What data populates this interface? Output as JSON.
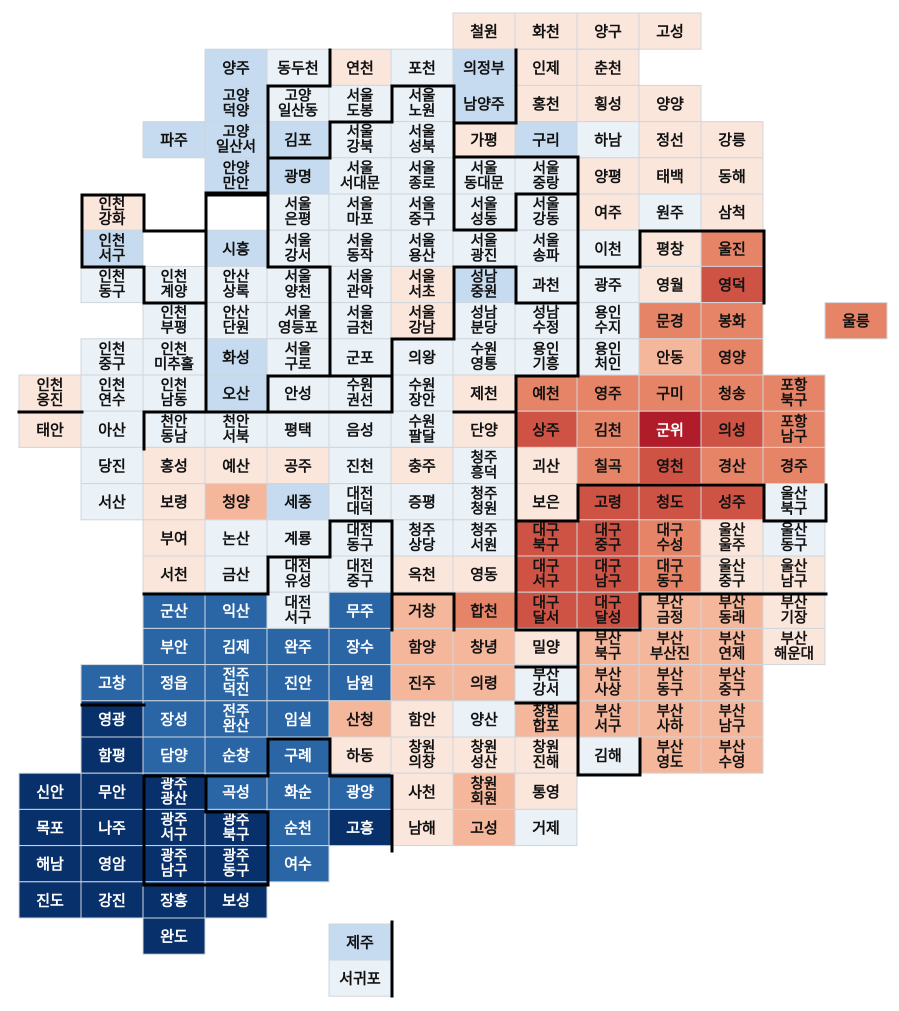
{
  "chart_data": {
    "type": "heatmap",
    "title": "",
    "colors": {
      "b4": "#08306b",
      "b3": "#2a65a6",
      "b2": "#c6dbef",
      "b1": "#eaf2f8",
      "r1": "#fbe6db",
      "r2": "#f5b79b",
      "r3": "#e58466",
      "r4": "#cf5344",
      "r5": "#b01c2a",
      "cell_border": "#cfd6dd",
      "boundary": "#000000"
    },
    "text_colors": {
      "light": "#ffffff",
      "dark": "#111111"
    },
    "rows": [
      [
        [
          7,
          "철원",
          "r1"
        ],
        [
          8,
          "화천",
          "r1"
        ],
        [
          9,
          "양구",
          "r1"
        ],
        [
          10,
          "고성",
          "r1"
        ]
      ],
      [
        [
          3,
          "양주",
          "b2"
        ],
        [
          4,
          "동두천",
          "b1"
        ],
        [
          5,
          "연천",
          "r1"
        ],
        [
          6,
          "포천",
          "b1"
        ],
        [
          7,
          "의정부",
          "b2"
        ],
        [
          8,
          "인제",
          "r1"
        ],
        [
          9,
          "춘천",
          "r1"
        ]
      ],
      [
        [
          3,
          "고양\n덕양",
          "b2"
        ],
        [
          4,
          "고양\n일산동",
          "b1"
        ],
        [
          5,
          "서울\n도봉",
          "b1"
        ],
        [
          6,
          "서울\n노원",
          "b1"
        ],
        [
          7,
          "남양주",
          "b2"
        ],
        [
          8,
          "홍천",
          "r1"
        ],
        [
          9,
          "횡성",
          "r1"
        ],
        [
          10,
          "양양",
          "r1"
        ]
      ],
      [
        [
          2,
          "파주",
          "b2"
        ],
        [
          3,
          "고양\n일산서",
          "b2"
        ],
        [
          4,
          "김포",
          "b2"
        ],
        [
          5,
          "서울\n강북",
          "b1"
        ],
        [
          6,
          "서울\n성북",
          "b1"
        ],
        [
          7,
          "가평",
          "r1"
        ],
        [
          8,
          "구리",
          "b2"
        ],
        [
          9,
          "하남",
          "b1"
        ],
        [
          10,
          "정선",
          "r1"
        ],
        [
          11,
          "강릉",
          "r1"
        ]
      ],
      [
        [
          3,
          "안양\n만안",
          "b2"
        ],
        [
          4,
          "광명",
          "b2"
        ],
        [
          5,
          "서울\n서대문",
          "b1"
        ],
        [
          6,
          "서울\n종로",
          "b1"
        ],
        [
          7,
          "서울\n동대문",
          "b1"
        ],
        [
          8,
          "서울\n중랑",
          "b1"
        ],
        [
          9,
          "양평",
          "r1"
        ],
        [
          10,
          "태백",
          "r1"
        ],
        [
          11,
          "동해",
          "r1"
        ]
      ],
      [
        [
          1,
          "인천\n강화",
          "r1"
        ],
        [
          4,
          "서울\n은평",
          "b1"
        ],
        [
          5,
          "서울\n마포",
          "b1"
        ],
        [
          6,
          "서울\n중구",
          "b1"
        ],
        [
          7,
          "서울\n성동",
          "b1"
        ],
        [
          8,
          "서울\n강동",
          "b1"
        ],
        [
          9,
          "여주",
          "r1"
        ],
        [
          10,
          "원주",
          "b1"
        ],
        [
          11,
          "삼척",
          "r1"
        ]
      ],
      [
        [
          1,
          "인천\n서구",
          "b2"
        ],
        [
          3,
          "시흥",
          "b2"
        ],
        [
          4,
          "서울\n강서",
          "b1"
        ],
        [
          5,
          "서울\n동작",
          "b1"
        ],
        [
          6,
          "서울\n용산",
          "b1"
        ],
        [
          7,
          "서울\n광진",
          "b1"
        ],
        [
          8,
          "서울\n송파",
          "b1"
        ],
        [
          9,
          "이천",
          "b1"
        ],
        [
          10,
          "평창",
          "r1"
        ],
        [
          11,
          "울진",
          "r3"
        ]
      ],
      [
        [
          1,
          "인천\n동구",
          "b1"
        ],
        [
          2,
          "인천\n계양",
          "b1"
        ],
        [
          3,
          "안산\n상록",
          "b1"
        ],
        [
          4,
          "서울\n양천",
          "b1"
        ],
        [
          5,
          "서울\n관악",
          "b1"
        ],
        [
          6,
          "서울\n서초",
          "r1"
        ],
        [
          7,
          "성남\n중원",
          "b2"
        ],
        [
          8,
          "과천",
          "b1"
        ],
        [
          9,
          "광주",
          "b1"
        ],
        [
          10,
          "영월",
          "r1"
        ],
        [
          11,
          "영덕",
          "r4"
        ]
      ],
      [
        [
          2,
          "인천\n부평",
          "b1"
        ],
        [
          3,
          "안산\n단원",
          "b1"
        ],
        [
          4,
          "서울\n영등포",
          "b1"
        ],
        [
          5,
          "서울\n금천",
          "b1"
        ],
        [
          6,
          "서울\n강남",
          "r1"
        ],
        [
          7,
          "성남\n분당",
          "b1"
        ],
        [
          8,
          "성남\n수정",
          "b1"
        ],
        [
          9,
          "용인\n수지",
          "b1"
        ],
        [
          10,
          "문경",
          "r3"
        ],
        [
          11,
          "봉화",
          "r3"
        ],
        [
          13,
          "울릉",
          "r3"
        ]
      ],
      [
        [
          1,
          "인천\n중구",
          "b1"
        ],
        [
          2,
          "인천\n미추홀",
          "b1"
        ],
        [
          3,
          "화성",
          "b2"
        ],
        [
          4,
          "서울\n구로",
          "b1"
        ],
        [
          5,
          "군포",
          "b1"
        ],
        [
          6,
          "의왕",
          "b1"
        ],
        [
          7,
          "수원\n영통",
          "b1"
        ],
        [
          8,
          "용인\n기흥",
          "b1"
        ],
        [
          9,
          "용인\n처인",
          "b1"
        ],
        [
          10,
          "안동",
          "r2"
        ],
        [
          11,
          "영양",
          "r3"
        ]
      ],
      [
        [
          0,
          "인천\n옹진",
          "r1"
        ],
        [
          1,
          "인천\n연수",
          "b1"
        ],
        [
          2,
          "인천\n남동",
          "b1"
        ],
        [
          3,
          "오산",
          "b2"
        ],
        [
          4,
          "안성",
          "b1"
        ],
        [
          5,
          "수원\n권선",
          "b1"
        ],
        [
          6,
          "수원\n장안",
          "b1"
        ],
        [
          7,
          "제천",
          "r1"
        ],
        [
          8,
          "예천",
          "r3"
        ],
        [
          9,
          "영주",
          "r3"
        ],
        [
          10,
          "구미",
          "r3"
        ],
        [
          11,
          "청송",
          "r3"
        ],
        [
          12,
          "포항\n북구",
          "r3"
        ]
      ],
      [
        [
          0,
          "태안",
          "r1"
        ],
        [
          1,
          "아산",
          "b1"
        ],
        [
          2,
          "천안\n동남",
          "b1"
        ],
        [
          3,
          "천안\n서북",
          "b1"
        ],
        [
          4,
          "평택",
          "b1"
        ],
        [
          5,
          "음성",
          "b1"
        ],
        [
          6,
          "수원\n팔달",
          "b1"
        ],
        [
          7,
          "단양",
          "r1"
        ],
        [
          8,
          "상주",
          "r4"
        ],
        [
          9,
          "김천",
          "r3"
        ],
        [
          10,
          "군위",
          "r5"
        ],
        [
          11,
          "의성",
          "r4"
        ],
        [
          12,
          "포항\n남구",
          "r3"
        ]
      ],
      [
        [
          1,
          "당진",
          "b1"
        ],
        [
          2,
          "홍성",
          "r1"
        ],
        [
          3,
          "예산",
          "r1"
        ],
        [
          4,
          "공주",
          "r1"
        ],
        [
          5,
          "진천",
          "b1"
        ],
        [
          6,
          "충주",
          "r1"
        ],
        [
          7,
          "청주\n흥덕",
          "b1"
        ],
        [
          8,
          "괴산",
          "r1"
        ],
        [
          9,
          "칠곡",
          "r3"
        ],
        [
          10,
          "영천",
          "r4"
        ],
        [
          11,
          "경산",
          "r3"
        ],
        [
          12,
          "경주",
          "r3"
        ]
      ],
      [
        [
          1,
          "서산",
          "b1"
        ],
        [
          2,
          "보령",
          "r1"
        ],
        [
          3,
          "청양",
          "r2"
        ],
        [
          4,
          "세종",
          "b2"
        ],
        [
          5,
          "대전\n대덕",
          "b1"
        ],
        [
          6,
          "증평",
          "b1"
        ],
        [
          7,
          "청주\n청원",
          "b1"
        ],
        [
          8,
          "보은",
          "r1"
        ],
        [
          9,
          "고령",
          "r4"
        ],
        [
          10,
          "청도",
          "r4"
        ],
        [
          11,
          "성주",
          "r4"
        ],
        [
          12,
          "울산\n북구",
          "b1"
        ]
      ],
      [
        [
          2,
          "부여",
          "r1"
        ],
        [
          3,
          "논산",
          "b1"
        ],
        [
          4,
          "계룡",
          "b1"
        ],
        [
          5,
          "대전\n동구",
          "b1"
        ],
        [
          6,
          "청주\n상당",
          "b1"
        ],
        [
          7,
          "청주\n서원",
          "b1"
        ],
        [
          8,
          "대구\n북구",
          "r4"
        ],
        [
          9,
          "대구\n중구",
          "r4"
        ],
        [
          10,
          "대구\n수성",
          "r3"
        ],
        [
          11,
          "울산\n울주",
          "r1"
        ],
        [
          12,
          "울산\n동구",
          "b1"
        ]
      ],
      [
        [
          2,
          "서천",
          "r1"
        ],
        [
          3,
          "금산",
          "b1"
        ],
        [
          4,
          "대전\n유성",
          "b1"
        ],
        [
          5,
          "대전\n중구",
          "b1"
        ],
        [
          6,
          "옥천",
          "r1"
        ],
        [
          7,
          "영동",
          "r1"
        ],
        [
          8,
          "대구\n서구",
          "r4"
        ],
        [
          9,
          "대구\n남구",
          "r4"
        ],
        [
          10,
          "대구\n동구",
          "r3"
        ],
        [
          11,
          "울산\n중구",
          "r1"
        ],
        [
          12,
          "울산\n남구",
          "r1"
        ]
      ],
      [
        [
          2,
          "군산",
          "b3"
        ],
        [
          3,
          "익산",
          "b3"
        ],
        [
          4,
          "대전\n서구",
          "b1"
        ],
        [
          5,
          "무주",
          "b3"
        ],
        [
          6,
          "거창",
          "r2"
        ],
        [
          7,
          "합천",
          "r3"
        ],
        [
          8,
          "대구\n달서",
          "r4"
        ],
        [
          9,
          "대구\n달성",
          "r4"
        ],
        [
          10,
          "부산\n금정",
          "r2"
        ],
        [
          11,
          "부산\n동래",
          "r2"
        ],
        [
          12,
          "부산\n기장",
          "r1"
        ]
      ],
      [
        [
          2,
          "부안",
          "b3"
        ],
        [
          3,
          "김제",
          "b3"
        ],
        [
          4,
          "완주",
          "b3"
        ],
        [
          5,
          "장수",
          "b3"
        ],
        [
          6,
          "함양",
          "r2"
        ],
        [
          7,
          "창녕",
          "r2"
        ],
        [
          8,
          "밀양",
          "r1"
        ],
        [
          9,
          "부산\n북구",
          "r2"
        ],
        [
          10,
          "부산\n부산진",
          "r2"
        ],
        [
          11,
          "부산\n연제",
          "r2"
        ],
        [
          12,
          "부산\n해운대",
          "r1"
        ]
      ],
      [
        [
          1,
          "고창",
          "b3"
        ],
        [
          2,
          "정읍",
          "b3"
        ],
        [
          3,
          "전주\n덕진",
          "b3"
        ],
        [
          4,
          "진안",
          "b3"
        ],
        [
          5,
          "남원",
          "b3"
        ],
        [
          6,
          "진주",
          "r2"
        ],
        [
          7,
          "의령",
          "r2"
        ],
        [
          8,
          "부산\n강서",
          "b1"
        ],
        [
          9,
          "부산\n사상",
          "r2"
        ],
        [
          10,
          "부산\n동구",
          "r2"
        ],
        [
          11,
          "부산\n중구",
          "r2"
        ]
      ],
      [
        [
          1,
          "영광",
          "b4"
        ],
        [
          2,
          "장성",
          "b3"
        ],
        [
          3,
          "전주\n완산",
          "b3"
        ],
        [
          4,
          "임실",
          "b3"
        ],
        [
          5,
          "산청",
          "r2"
        ],
        [
          6,
          "함안",
          "r1"
        ],
        [
          7,
          "양산",
          "b1"
        ],
        [
          8,
          "창원\n합포",
          "r2"
        ],
        [
          9,
          "부산\n서구",
          "r2"
        ],
        [
          10,
          "부산\n사하",
          "r2"
        ],
        [
          11,
          "부산\n남구",
          "r2"
        ]
      ],
      [
        [
          1,
          "함평",
          "b4"
        ],
        [
          2,
          "담양",
          "b3"
        ],
        [
          3,
          "순창",
          "b3"
        ],
        [
          4,
          "구례",
          "b3"
        ],
        [
          5,
          "하동",
          "r1"
        ],
        [
          6,
          "창원\n의창",
          "r1"
        ],
        [
          7,
          "창원\n성산",
          "r1"
        ],
        [
          8,
          "창원\n진해",
          "r1"
        ],
        [
          9,
          "김해",
          "b1"
        ],
        [
          10,
          "부산\n영도",
          "r2"
        ],
        [
          11,
          "부산\n수영",
          "r2"
        ]
      ],
      [
        [
          0,
          "신안",
          "b4"
        ],
        [
          1,
          "무안",
          "b4"
        ],
        [
          2,
          "광주\n광산",
          "b4"
        ],
        [
          3,
          "곡성",
          "b3"
        ],
        [
          4,
          "화순",
          "b3"
        ],
        [
          5,
          "광양",
          "b3"
        ],
        [
          6,
          "사천",
          "r1"
        ],
        [
          7,
          "창원\n회원",
          "r2"
        ],
        [
          8,
          "통영",
          "r1"
        ]
      ],
      [
        [
          0,
          "목포",
          "b4"
        ],
        [
          1,
          "나주",
          "b4"
        ],
        [
          2,
          "광주\n서구",
          "b4"
        ],
        [
          3,
          "광주\n북구",
          "b4"
        ],
        [
          4,
          "순천",
          "b3"
        ],
        [
          5,
          "고흥",
          "b4"
        ],
        [
          6,
          "남해",
          "r1"
        ],
        [
          7,
          "고성",
          "r2"
        ],
        [
          8,
          "거제",
          "b1"
        ]
      ],
      [
        [
          0,
          "해남",
          "b4"
        ],
        [
          1,
          "영암",
          "b4"
        ],
        [
          2,
          "광주\n남구",
          "b4"
        ],
        [
          3,
          "광주\n동구",
          "b4"
        ],
        [
          4,
          "여수",
          "b3"
        ]
      ],
      [
        [
          0,
          "진도",
          "b4"
        ],
        [
          1,
          "강진",
          "b4"
        ],
        [
          2,
          "장흥",
          "b4"
        ],
        [
          3,
          "보성",
          "b4"
        ]
      ],
      [
        [
          2,
          "완도",
          "b4"
        ]
      ],
      [
        [
          5,
          "제주",
          "b2"
        ]
      ],
      [
        [
          5,
          "서귀포",
          "b1"
        ]
      ]
    ]
  }
}
